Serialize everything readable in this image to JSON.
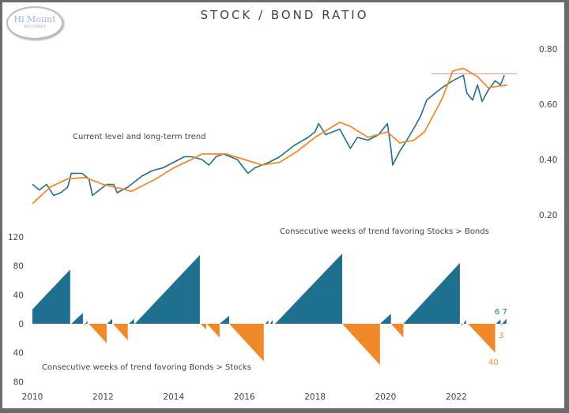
{
  "title": "STOCK / BOND RATIO",
  "logo": {
    "text": "Hi Mount",
    "subtext": "INVESTMENTS"
  },
  "colors": {
    "ratio": "#1f6f8e",
    "trend": "#f0892a",
    "stocks": "#1f6f8e",
    "bonds": "#f0892a",
    "reference_line": "#e8a0a0"
  },
  "chart_data": [
    {
      "type": "line",
      "annotation": "Current level and long-term trend",
      "ylim": [
        0.2,
        0.8
      ],
      "yticks": [
        "0.20",
        "0.40",
        "0.60",
        "0.80"
      ],
      "xlim": [
        2010,
        2023.5
      ],
      "reference_line": {
        "value": 0.71,
        "x": [
          2021.3,
          2023.7
        ]
      },
      "series": [
        {
          "key": "ratio",
          "points": [
            [
              2010.0,
              0.31
            ],
            [
              2010.2,
              0.29
            ],
            [
              2010.4,
              0.31
            ],
            [
              2010.6,
              0.27
            ],
            [
              2010.8,
              0.28
            ],
            [
              2011.0,
              0.3
            ],
            [
              2011.1,
              0.35
            ],
            [
              2011.4,
              0.35
            ],
            [
              2011.6,
              0.33
            ],
            [
              2011.7,
              0.27
            ],
            [
              2011.9,
              0.29
            ],
            [
              2012.1,
              0.31
            ],
            [
              2012.3,
              0.31
            ],
            [
              2012.4,
              0.28
            ],
            [
              2012.7,
              0.3
            ],
            [
              2012.9,
              0.32
            ],
            [
              2013.1,
              0.34
            ],
            [
              2013.4,
              0.36
            ],
            [
              2013.7,
              0.37
            ],
            [
              2014.0,
              0.39
            ],
            [
              2014.3,
              0.41
            ],
            [
              2014.5,
              0.41
            ],
            [
              2014.8,
              0.4
            ],
            [
              2015.0,
              0.38
            ],
            [
              2015.2,
              0.41
            ],
            [
              2015.4,
              0.42
            ],
            [
              2015.8,
              0.4
            ],
            [
              2016.1,
              0.35
            ],
            [
              2016.3,
              0.37
            ],
            [
              2016.5,
              0.38
            ],
            [
              2016.7,
              0.39
            ],
            [
              2017.0,
              0.41
            ],
            [
              2017.4,
              0.45
            ],
            [
              2017.8,
              0.48
            ],
            [
              2018.0,
              0.5
            ],
            [
              2018.1,
              0.53
            ],
            [
              2018.3,
              0.49
            ],
            [
              2018.5,
              0.5
            ],
            [
              2018.7,
              0.51
            ],
            [
              2019.0,
              0.44
            ],
            [
              2019.2,
              0.48
            ],
            [
              2019.5,
              0.47
            ],
            [
              2019.8,
              0.49
            ],
            [
              2020.05,
              0.53
            ],
            [
              2020.15,
              0.44
            ],
            [
              2020.2,
              0.38
            ],
            [
              2020.4,
              0.43
            ],
            [
              2020.6,
              0.47
            ],
            [
              2020.83,
              0.52
            ],
            [
              2021.0,
              0.56
            ],
            [
              2021.16,
              0.615
            ],
            [
              2021.4,
              0.64
            ],
            [
              2021.6,
              0.66
            ],
            [
              2021.9,
              0.685
            ],
            [
              2022.2,
              0.705
            ],
            [
              2022.3,
              0.64
            ],
            [
              2022.46,
              0.615
            ],
            [
              2022.6,
              0.67
            ],
            [
              2022.73,
              0.61
            ],
            [
              2022.9,
              0.65
            ],
            [
              2023.1,
              0.685
            ],
            [
              2023.25,
              0.67
            ],
            [
              2023.36,
              0.705
            ]
          ]
        },
        {
          "key": "trend",
          "points": [
            [
              2010.0,
              0.24
            ],
            [
              2010.5,
              0.3
            ],
            [
              2011.0,
              0.33
            ],
            [
              2011.5,
              0.335
            ],
            [
              2012.0,
              0.31
            ],
            [
              2012.5,
              0.295
            ],
            [
              2012.8,
              0.285
            ],
            [
              2013.5,
              0.33
            ],
            [
              2014.0,
              0.37
            ],
            [
              2014.5,
              0.4
            ],
            [
              2014.8,
              0.42
            ],
            [
              2015.5,
              0.42
            ],
            [
              2016.0,
              0.4
            ],
            [
              2016.5,
              0.38
            ],
            [
              2017.0,
              0.39
            ],
            [
              2017.5,
              0.43
            ],
            [
              2018.0,
              0.48
            ],
            [
              2018.7,
              0.535
            ],
            [
              2019.0,
              0.52
            ],
            [
              2019.5,
              0.48
            ],
            [
              2020.05,
              0.5
            ],
            [
              2020.4,
              0.46
            ],
            [
              2020.8,
              0.47
            ],
            [
              2021.1,
              0.5
            ],
            [
              2021.6,
              0.62
            ],
            [
              2021.9,
              0.72
            ],
            [
              2022.2,
              0.73
            ],
            [
              2022.6,
              0.7
            ],
            [
              2022.9,
              0.66
            ],
            [
              2023.45,
              0.67
            ]
          ]
        }
      ]
    },
    {
      "type": "area",
      "annotation_top": "Consecutive weeks of trend favoring Stocks > Bonds",
      "annotation_bottom": "Consecutive weeks of trend favoring Bonds > Stocks",
      "ylim": [
        -80,
        120
      ],
      "yticks": [
        {
          "v": 120,
          "t": "120"
        },
        {
          "v": 80,
          "t": "80"
        },
        {
          "v": 40,
          "t": "40"
        },
        {
          "v": 0,
          "t": "0"
        },
        {
          "v": -40,
          "t": "40"
        },
        {
          "v": -80,
          "t": "80"
        }
      ],
      "xticks": [
        "2010",
        "2012",
        "2014",
        "2016",
        "2018",
        "2020",
        "2022"
      ],
      "streaks": [
        {
          "start": 2010.0,
          "end": 2011.07,
          "from": 20,
          "to": 75
        },
        {
          "start": 2011.1,
          "end": 2011.43,
          "from": 0,
          "to": 15
        },
        {
          "start": 2011.46,
          "end": 2011.5,
          "from": 0,
          "to": -3
        },
        {
          "start": 2011.5,
          "end": 2011.56,
          "from": 0,
          "to": 4
        },
        {
          "start": 2011.6,
          "end": 2012.1,
          "from": 0,
          "to": -27
        },
        {
          "start": 2012.12,
          "end": 2012.26,
          "from": 0,
          "to": 7
        },
        {
          "start": 2012.28,
          "end": 2012.7,
          "from": 0,
          "to": -23
        },
        {
          "start": 2012.73,
          "end": 2012.88,
          "from": 0,
          "to": 7
        },
        {
          "start": 2012.9,
          "end": 2014.74,
          "from": 0,
          "to": 95
        },
        {
          "start": 2014.76,
          "end": 2014.92,
          "from": 0,
          "to": -8
        },
        {
          "start": 2014.94,
          "end": 2015.3,
          "from": 0,
          "to": -19
        },
        {
          "start": 2015.3,
          "end": 2015.57,
          "from": 0,
          "to": 11
        },
        {
          "start": 2015.57,
          "end": 2016.55,
          "from": 0,
          "to": -52
        },
        {
          "start": 2016.6,
          "end": 2016.68,
          "from": 0,
          "to": 5
        },
        {
          "start": 2016.72,
          "end": 2016.8,
          "from": 0,
          "to": 5
        },
        {
          "start": 2016.87,
          "end": 2018.77,
          "from": 0,
          "to": 97
        },
        {
          "start": 2018.77,
          "end": 2019.84,
          "from": 0,
          "to": -57
        },
        {
          "start": 2019.84,
          "end": 2020.15,
          "from": 0,
          "to": 14
        },
        {
          "start": 2020.15,
          "end": 2020.5,
          "from": 0,
          "to": -19
        },
        {
          "start": 2020.5,
          "end": 2022.1,
          "from": 0,
          "to": 84
        },
        {
          "start": 2022.12,
          "end": 2022.18,
          "from": 0,
          "to": -3
        },
        {
          "start": 2022.2,
          "end": 2022.28,
          "from": 0,
          "to": 5
        },
        {
          "start": 2022.33,
          "end": 2023.1,
          "from": 0,
          "to": -40
        },
        {
          "start": 2023.12,
          "end": 2023.25,
          "from": 0,
          "to": 6
        },
        {
          "start": 2023.25,
          "end": 2023.3,
          "from": 0,
          "to": -3
        },
        {
          "start": 2023.3,
          "end": 2023.42,
          "from": 0,
          "to": 7
        }
      ],
      "data_labels": {
        "stocks": "6 7",
        "bonds_recent": "3",
        "bonds_prior": "40"
      }
    }
  ]
}
